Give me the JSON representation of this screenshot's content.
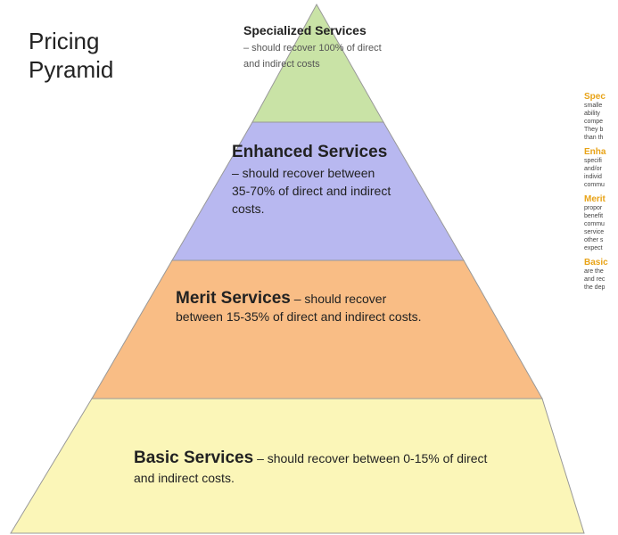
{
  "title": "Pricing Pyramid",
  "tiers": [
    {
      "head": "Specialized Services",
      "body": "– should recover 100% of direct and indirect costs"
    },
    {
      "head": "Enhanced Services",
      "body": "– should recover between 35-70% of direct and indirect costs."
    },
    {
      "head": "Merit Services",
      "body": "– should recover between 15-35% of direct and indirect costs."
    },
    {
      "head": "Basic Services",
      "body": "– should recover between 0-15% of direct and indirect costs."
    }
  ],
  "side": [
    {
      "head": "Spec",
      "lines": [
        "smalle",
        "ability",
        "compe",
        "They b",
        "than th"
      ]
    },
    {
      "head": "Enha",
      "lines": [
        "specifi",
        "and/or",
        "individ",
        "commu"
      ]
    },
    {
      "head": "Merit",
      "lines": [
        "propor",
        "benefit",
        "commu",
        "service",
        "other s",
        "expect"
      ]
    },
    {
      "head": "Basic",
      "lines": [
        "are the",
        "and rec",
        "the dep"
      ]
    }
  ]
}
